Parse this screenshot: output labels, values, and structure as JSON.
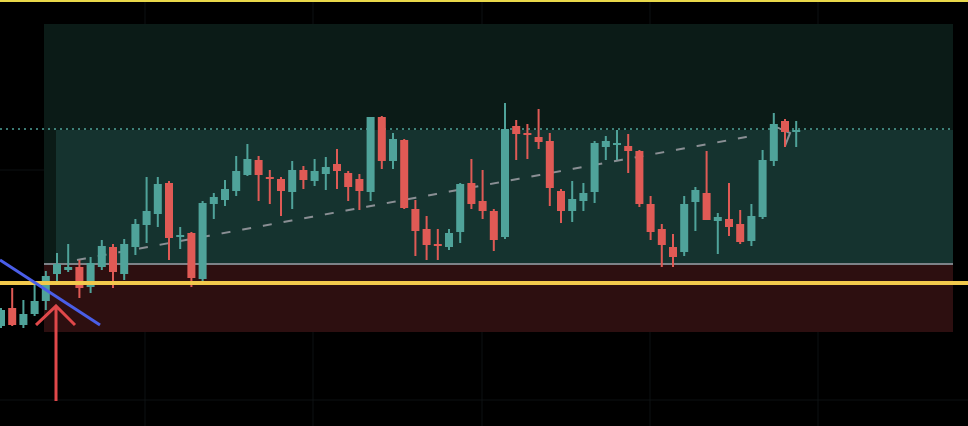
{
  "chart_data": {
    "type": "candlestick",
    "title": "",
    "xlabel": "",
    "ylabel": "",
    "ylim": [
      0,
      426
    ],
    "grid": true,
    "colors": {
      "up": "#4fa39a",
      "down": "#e05a55",
      "background": "#000000",
      "demand_zone": "#2d0f10",
      "supply_zone_outer": "#0b1b17",
      "supply_zone_inner": "#15332f",
      "zone_border": "#7d8288",
      "support_line": "#f2c94c",
      "top_line": "#e8d84a",
      "dotted_level": "#4fa39a",
      "trendline": "#4a5ee8",
      "arrow": "#e0484a",
      "dashed_trend": "#8a8f94"
    },
    "levels": {
      "supply_zone_top": 402,
      "supply_zone_mid": 296,
      "zone_divider": 162,
      "demand_zone_bottom": 94,
      "support": 143,
      "dotted": 297
    },
    "candles": [
      [
        100,
        116,
        118,
        98
      ],
      [
        118,
        101,
        138,
        100
      ],
      [
        101,
        112,
        126,
        98
      ],
      [
        112,
        125,
        143,
        110
      ],
      [
        125,
        150,
        155,
        116
      ],
      [
        152,
        162,
        173,
        143
      ],
      [
        156,
        159,
        182,
        154
      ],
      [
        159,
        138,
        166,
        128
      ],
      [
        139,
        163,
        169,
        133
      ],
      [
        159,
        180,
        186,
        156
      ],
      [
        179,
        154,
        182,
        138
      ],
      [
        152,
        182,
        187,
        146
      ],
      [
        179,
        202,
        207,
        171
      ],
      [
        201,
        215,
        249,
        183
      ],
      [
        212,
        242,
        249,
        199
      ],
      [
        243,
        188,
        245,
        166
      ],
      [
        190,
        191,
        199,
        177
      ],
      [
        193,
        148,
        194,
        139
      ],
      [
        147,
        223,
        225,
        143
      ],
      [
        222,
        229,
        233,
        207
      ],
      [
        226,
        237,
        246,
        220
      ],
      [
        235,
        255,
        270,
        230
      ],
      [
        251,
        267,
        282,
        250
      ],
      [
        266,
        251,
        270,
        225
      ],
      [
        249,
        248,
        256,
        222
      ],
      [
        247,
        235,
        249,
        210
      ],
      [
        234,
        256,
        265,
        217
      ],
      [
        256,
        246,
        260,
        237
      ],
      [
        245,
        255,
        267,
        240
      ],
      [
        252,
        259,
        269,
        236
      ],
      [
        262,
        255,
        277,
        237
      ],
      [
        253,
        239,
        255,
        225
      ],
      [
        247,
        235,
        252,
        216
      ],
      [
        234,
        309,
        309,
        225
      ],
      [
        309,
        265,
        310,
        257
      ],
      [
        265,
        287,
        293,
        257
      ],
      [
        286,
        218,
        287,
        217
      ],
      [
        217,
        195,
        226,
        170
      ],
      [
        197,
        181,
        210,
        166
      ],
      [
        182,
        181,
        197,
        166
      ],
      [
        179,
        193,
        197,
        176
      ],
      [
        194,
        242,
        243,
        183
      ],
      [
        243,
        222,
        267,
        217
      ],
      [
        225,
        215,
        256,
        207
      ],
      [
        215,
        186,
        217,
        175
      ],
      [
        189,
        297,
        323,
        187
      ],
      [
        300,
        292,
        306,
        266
      ],
      [
        293,
        291,
        302,
        267
      ],
      [
        289,
        284,
        317,
        277
      ],
      [
        285,
        238,
        293,
        220
      ],
      [
        235,
        215,
        237,
        203
      ],
      [
        215,
        227,
        245,
        204
      ],
      [
        225,
        233,
        243,
        215
      ],
      [
        234,
        283,
        285,
        223
      ],
      [
        279,
        285,
        290,
        266
      ],
      [
        282,
        283,
        296,
        266
      ],
      [
        280,
        275,
        292,
        253
      ],
      [
        275,
        222,
        276,
        219
      ],
      [
        222,
        194,
        230,
        186
      ],
      [
        197,
        181,
        202,
        159
      ],
      [
        179,
        169,
        192,
        159
      ],
      [
        174,
        222,
        230,
        170
      ],
      [
        224,
        236,
        239,
        195
      ],
      [
        233,
        206,
        275,
        206
      ],
      [
        205,
        209,
        213,
        172
      ],
      [
        207,
        199,
        243,
        190
      ],
      [
        202,
        184,
        216,
        182
      ],
      [
        185,
        210,
        222,
        180
      ],
      [
        209,
        266,
        276,
        207
      ],
      [
        265,
        302,
        313,
        260
      ],
      [
        305,
        294,
        307,
        279
      ],
      [
        295,
        296,
        305,
        279
      ]
    ]
  }
}
